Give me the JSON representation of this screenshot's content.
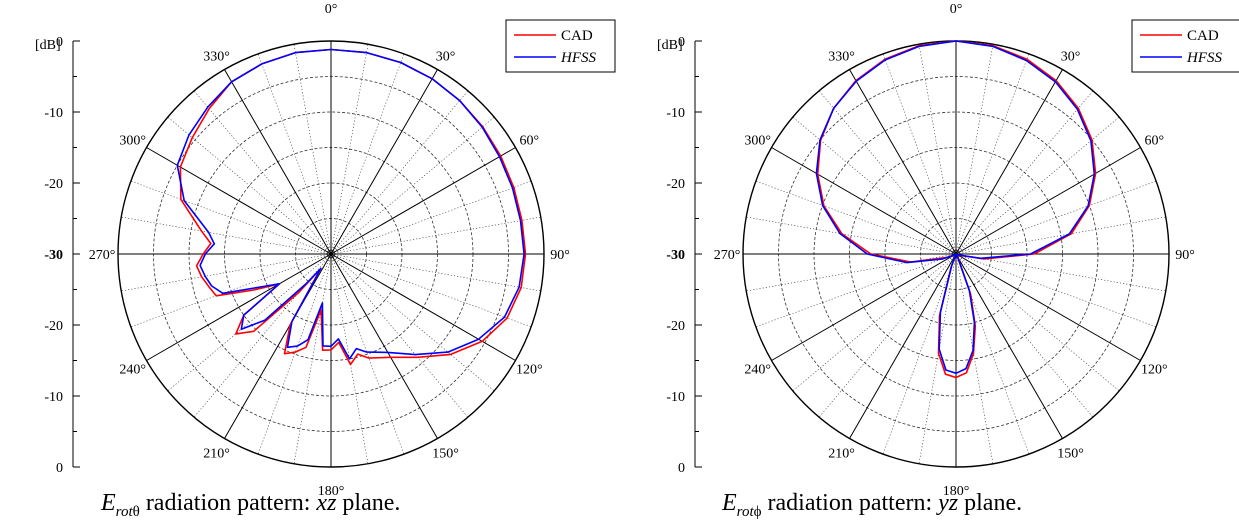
{
  "chart_data": [
    {
      "type": "polar-line",
      "caption": {
        "field": "E",
        "sub_prefix": "rot",
        "sub_symbol": "θ",
        "text": " radiation pattern: ",
        "plane": "xz",
        "tail": " plane."
      },
      "unit_label": "[dB]",
      "radial_ticks": [
        "0",
        "-10",
        "-20",
        "-30",
        "-20",
        "-10",
        "0"
      ],
      "rlim": [
        -30,
        0
      ],
      "angle_labels": [
        "0°",
        "30°",
        "60°",
        "90°",
        "120°",
        "150°",
        "180°",
        "210°",
        "240°",
        "270°",
        "300°",
        "330°"
      ],
      "grid": true,
      "legend": {
        "placement": "top-right"
      },
      "series": [
        {
          "name": "CAD",
          "color": "#ff0000",
          "theta": [
            0,
            10,
            20,
            30,
            40,
            50,
            60,
            70,
            80,
            90,
            100,
            110,
            120,
            130,
            140,
            150,
            160,
            165,
            170,
            175,
            180,
            185,
            190,
            195,
            200,
            205,
            210,
            215,
            220,
            225,
            230,
            235,
            240,
            245,
            250,
            255,
            260,
            265,
            270,
            275,
            280,
            290,
            300,
            310,
            320,
            330,
            340,
            350,
            360
          ],
          "values": [
            -1.2,
            -1.2,
            -1.3,
            -1.5,
            -1.8,
            -2.1,
            -2.4,
            -2.6,
            -2.7,
            -2.6,
            -2.8,
            -3.6,
            -5.4,
            -8,
            -11,
            -13.2,
            -14.4,
            -15.4,
            -14.2,
            -17.5,
            -16.5,
            -16.4,
            -22,
            -16.4,
            -15.3,
            -14.5,
            -18.5,
            -27.5,
            -23,
            -14.6,
            -12.5,
            -15,
            -21.6,
            -18,
            -12.8,
            -12.2,
            -11.5,
            -11,
            -12,
            -13,
            -11.5,
            -7.5,
            -5.5,
            -4.5,
            -3.3,
            -2,
            -1.5,
            -1.2,
            -1.2
          ]
        },
        {
          "name": "HFSS",
          "color": "#0000ff",
          "theta": [
            0,
            10,
            20,
            30,
            40,
            50,
            60,
            70,
            80,
            90,
            100,
            110,
            120,
            130,
            140,
            150,
            160,
            165,
            170,
            175,
            180,
            185,
            190,
            195,
            200,
            205,
            210,
            215,
            220,
            225,
            230,
            235,
            240,
            245,
            250,
            255,
            260,
            265,
            270,
            275,
            280,
            290,
            300,
            310,
            320,
            330,
            340,
            350,
            360
          ],
          "values": [
            -1.2,
            -1.2,
            -1.3,
            -1.5,
            -1.8,
            -2.2,
            -2.6,
            -2.8,
            -2.9,
            -2.8,
            -3.1,
            -4,
            -6,
            -8.5,
            -11.5,
            -14,
            -15.3,
            -16.2,
            -15,
            -18,
            -17,
            -17,
            -23,
            -17.5,
            -16.2,
            -15.5,
            -19,
            -27.5,
            -24.5,
            -16.8,
            -13.5,
            -15,
            -21.6,
            -19,
            -13.8,
            -12.6,
            -12,
            -11.5,
            -12.3,
            -13.5,
            -12.5,
            -8,
            -5,
            -3.9,
            -3,
            -2,
            -1.5,
            -1.2,
            -1.2
          ]
        }
      ]
    },
    {
      "type": "polar-line",
      "caption": {
        "field": "E",
        "sub_prefix": "rot",
        "sub_symbol": "ϕ",
        "text": " radiation pattern: ",
        "plane": "yz",
        "tail": " plane."
      },
      "unit_label": "[dB]",
      "radial_ticks": [
        "0",
        "-10",
        "-20",
        "-30",
        "-20",
        "-10",
        "0"
      ],
      "rlim": [
        -30,
        0
      ],
      "angle_labels": [
        "0°",
        "30°",
        "60°",
        "90°",
        "120°",
        "150°",
        "180°",
        "210°",
        "240°",
        "270°",
        "300°",
        "330°"
      ],
      "grid": true,
      "legend": {
        "placement": "top-right"
      },
      "series": [
        {
          "name": "CAD",
          "color": "#ff0000",
          "theta": [
            0,
            10,
            20,
            30,
            40,
            50,
            60,
            70,
            80,
            90,
            100,
            110,
            120,
            130,
            140,
            150,
            160,
            165,
            170,
            175,
            180,
            185,
            190,
            195,
            200,
            210,
            220,
            230,
            240,
            250,
            260,
            270,
            280,
            290,
            300,
            310,
            320,
            330,
            340,
            350,
            360
          ],
          "values": [
            0,
            -0.2,
            -0.8,
            -1.8,
            -3.2,
            -5,
            -7.3,
            -10,
            -13.5,
            -19,
            -26,
            -29.5,
            -29.8,
            -29.9,
            -30,
            -29.5,
            -24,
            -19.5,
            -15.8,
            -13.2,
            -12.6,
            -13,
            -15.8,
            -21,
            -28,
            -30,
            -30,
            -29.9,
            -29.7,
            -28.5,
            -23.5,
            -18,
            -13.7,
            -10.2,
            -7.5,
            -5.1,
            -3.2,
            -1.8,
            -0.8,
            -0.2,
            0
          ]
        },
        {
          "name": "HFSS",
          "color": "#0000ff",
          "theta": [
            0,
            10,
            20,
            30,
            40,
            50,
            60,
            70,
            80,
            90,
            100,
            110,
            120,
            130,
            140,
            150,
            160,
            165,
            170,
            175,
            180,
            185,
            190,
            195,
            200,
            210,
            220,
            230,
            240,
            250,
            260,
            270,
            280,
            290,
            300,
            310,
            320,
            330,
            340,
            350,
            360
          ],
          "values": [
            0,
            -0.3,
            -1,
            -2,
            -3.4,
            -5.2,
            -7.5,
            -10.2,
            -13.8,
            -19.5,
            -26.5,
            -29.6,
            -29.9,
            -30,
            -30,
            -29.6,
            -24.5,
            -20,
            -16.2,
            -13.8,
            -13.2,
            -13.6,
            -16.4,
            -21.5,
            -28.2,
            -30,
            -30,
            -29.9,
            -29.6,
            -28,
            -23,
            -17.5,
            -13.4,
            -10,
            -7.3,
            -5,
            -3.2,
            -1.9,
            -0.9,
            -0.3,
            0
          ]
        }
      ]
    }
  ]
}
